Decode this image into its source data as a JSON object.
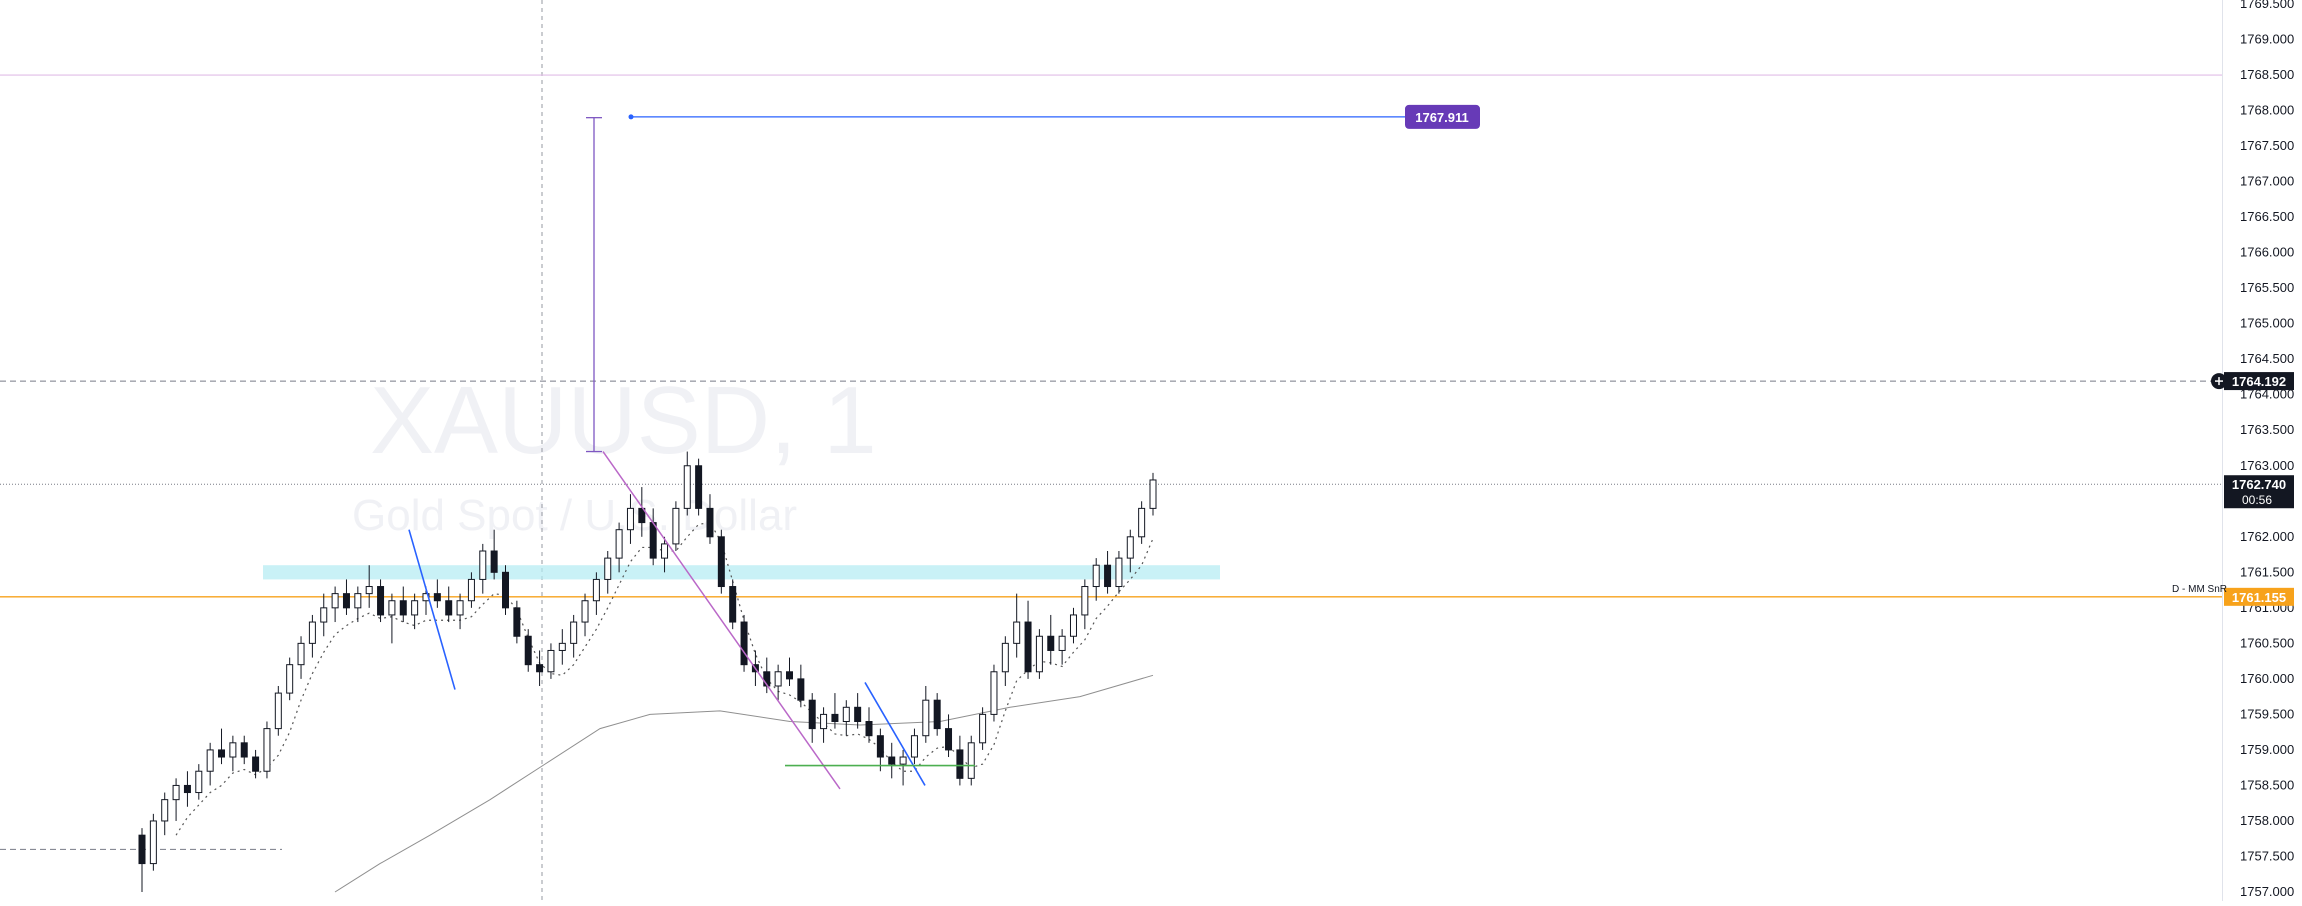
{
  "watermark": {
    "symbol": "XAUUSD, 1",
    "description": "Gold Spot / U.S. Dollar"
  },
  "chart_data": {
    "type": "candlestick",
    "symbol": "XAUUSD",
    "timeframe": "1",
    "ylim": [
      1757.0,
      1769.5
    ],
    "y_ticks": [
      "1769.500",
      "1769.000",
      "1768.500",
      "1768.000",
      "1767.500",
      "1767.000",
      "1766.500",
      "1766.000",
      "1765.500",
      "1765.000",
      "1764.500",
      "1764.000",
      "1763.500",
      "1763.000",
      "1762.500",
      "1762.000",
      "1761.500",
      "1761.000",
      "1760.500",
      "1760.000",
      "1759.500",
      "1759.000",
      "1758.500",
      "1758.000",
      "1757.500",
      "1757.000"
    ],
    "price_labels": {
      "target": {
        "text": "1767.911",
        "value": 1767.911,
        "color": "#673ab7"
      },
      "alert": {
        "text": "1764.192",
        "value": 1764.192,
        "color": "#131722"
      },
      "last": {
        "text": "1762.740",
        "value": 1762.74,
        "countdown": "00:56",
        "color": "#131722"
      },
      "snr": {
        "text": "1761.155",
        "value": 1761.155,
        "color": "#f7a21b",
        "name": "D - MM SnR"
      }
    },
    "lines": {
      "pink_level": 1768.5,
      "snr_level": 1761.155,
      "alert_level": 1764.192,
      "last_level": 1762.74
    },
    "zone": {
      "low": 1761.4,
      "high": 1761.6,
      "color": "#b2ebf2"
    },
    "candles": [
      [
        1757.8,
        1757.9,
        1757.0,
        1757.4
      ],
      [
        1757.4,
        1758.1,
        1757.3,
        1758.0
      ],
      [
        1758.0,
        1758.4,
        1757.8,
        1758.3
      ],
      [
        1758.3,
        1758.6,
        1758.0,
        1758.5
      ],
      [
        1758.5,
        1758.7,
        1758.2,
        1758.4
      ],
      [
        1758.4,
        1758.8,
        1758.3,
        1758.7
      ],
      [
        1758.7,
        1759.1,
        1758.5,
        1759.0
      ],
      [
        1759.0,
        1759.3,
        1758.8,
        1758.9
      ],
      [
        1758.9,
        1759.2,
        1758.7,
        1759.1
      ],
      [
        1759.1,
        1759.2,
        1758.8,
        1758.9
      ],
      [
        1758.9,
        1759.0,
        1758.6,
        1758.7
      ],
      [
        1758.7,
        1759.4,
        1758.6,
        1759.3
      ],
      [
        1759.3,
        1759.9,
        1759.2,
        1759.8
      ],
      [
        1759.8,
        1760.3,
        1759.7,
        1760.2
      ],
      [
        1760.2,
        1760.6,
        1760.0,
        1760.5
      ],
      [
        1760.5,
        1760.9,
        1760.3,
        1760.8
      ],
      [
        1760.8,
        1761.2,
        1760.6,
        1761.0
      ],
      [
        1761.0,
        1761.3,
        1760.8,
        1761.2
      ],
      [
        1761.2,
        1761.4,
        1760.9,
        1761.0
      ],
      [
        1761.0,
        1761.3,
        1760.8,
        1761.2
      ],
      [
        1761.2,
        1761.6,
        1761.0,
        1761.3
      ],
      [
        1761.3,
        1761.4,
        1760.8,
        1760.9
      ],
      [
        1760.9,
        1761.2,
        1760.5,
        1761.1
      ],
      [
        1761.1,
        1761.3,
        1760.8,
        1760.9
      ],
      [
        1760.9,
        1761.2,
        1760.7,
        1761.1
      ],
      [
        1761.1,
        1761.3,
        1760.9,
        1761.2
      ],
      [
        1761.2,
        1761.4,
        1761.0,
        1761.1
      ],
      [
        1761.1,
        1761.3,
        1760.8,
        1760.9
      ],
      [
        1760.9,
        1761.2,
        1760.7,
        1761.1
      ],
      [
        1761.1,
        1761.5,
        1761.0,
        1761.4
      ],
      [
        1761.4,
        1761.9,
        1761.2,
        1761.8
      ],
      [
        1761.8,
        1762.1,
        1761.4,
        1761.5
      ],
      [
        1761.5,
        1761.6,
        1760.9,
        1761.0
      ],
      [
        1761.0,
        1761.1,
        1760.5,
        1760.6
      ],
      [
        1760.6,
        1760.7,
        1760.1,
        1760.2
      ],
      [
        1760.2,
        1760.4,
        1759.9,
        1760.1
      ],
      [
        1760.1,
        1760.5,
        1760.0,
        1760.4
      ],
      [
        1760.4,
        1760.7,
        1760.2,
        1760.5
      ],
      [
        1760.5,
        1760.9,
        1760.3,
        1760.8
      ],
      [
        1760.8,
        1761.2,
        1760.6,
        1761.1
      ],
      [
        1761.1,
        1761.5,
        1760.9,
        1761.4
      ],
      [
        1761.4,
        1761.8,
        1761.2,
        1761.7
      ],
      [
        1761.7,
        1762.2,
        1761.5,
        1762.1
      ],
      [
        1762.1,
        1762.6,
        1761.9,
        1762.4
      ],
      [
        1762.4,
        1762.7,
        1762.0,
        1762.2
      ],
      [
        1762.2,
        1762.4,
        1761.6,
        1761.7
      ],
      [
        1761.7,
        1762.0,
        1761.5,
        1761.9
      ],
      [
        1761.9,
        1762.5,
        1761.8,
        1762.4
      ],
      [
        1762.4,
        1763.2,
        1762.3,
        1763.0
      ],
      [
        1763.0,
        1763.1,
        1762.3,
        1762.4
      ],
      [
        1762.4,
        1762.6,
        1761.9,
        1762.0
      ],
      [
        1762.0,
        1762.1,
        1761.2,
        1761.3
      ],
      [
        1761.3,
        1761.4,
        1760.7,
        1760.8
      ],
      [
        1760.8,
        1760.9,
        1760.1,
        1760.2
      ],
      [
        1760.2,
        1760.4,
        1759.9,
        1760.1
      ],
      [
        1760.1,
        1760.3,
        1759.8,
        1759.9
      ],
      [
        1759.9,
        1760.2,
        1759.7,
        1760.1
      ],
      [
        1760.1,
        1760.3,
        1759.9,
        1760.0
      ],
      [
        1760.0,
        1760.2,
        1759.6,
        1759.7
      ],
      [
        1759.7,
        1759.8,
        1759.1,
        1759.3
      ],
      [
        1759.3,
        1759.6,
        1759.1,
        1759.5
      ],
      [
        1759.5,
        1759.8,
        1759.3,
        1759.4
      ],
      [
        1759.4,
        1759.7,
        1759.2,
        1759.6
      ],
      [
        1759.6,
        1759.8,
        1759.3,
        1759.4
      ],
      [
        1759.4,
        1759.6,
        1759.1,
        1759.2
      ],
      [
        1759.2,
        1759.3,
        1758.7,
        1758.9
      ],
      [
        1758.9,
        1759.1,
        1758.6,
        1758.8
      ],
      [
        1758.8,
        1759.0,
        1758.5,
        1758.9
      ],
      [
        1758.9,
        1759.3,
        1758.8,
        1759.2
      ],
      [
        1759.2,
        1759.9,
        1759.1,
        1759.7
      ],
      [
        1759.7,
        1759.8,
        1759.2,
        1759.3
      ],
      [
        1759.3,
        1759.5,
        1758.9,
        1759.0
      ],
      [
        1759.0,
        1759.2,
        1758.5,
        1758.6
      ],
      [
        1758.6,
        1759.2,
        1758.5,
        1759.1
      ],
      [
        1759.1,
        1759.6,
        1759.0,
        1759.5
      ],
      [
        1759.5,
        1760.2,
        1759.4,
        1760.1
      ],
      [
        1760.1,
        1760.6,
        1759.9,
        1760.5
      ],
      [
        1760.5,
        1761.2,
        1760.3,
        1760.8
      ],
      [
        1760.8,
        1761.1,
        1760.0,
        1760.1
      ],
      [
        1760.1,
        1760.7,
        1760.0,
        1760.6
      ],
      [
        1760.6,
        1760.9,
        1760.2,
        1760.4
      ],
      [
        1760.4,
        1760.7,
        1760.2,
        1760.6
      ],
      [
        1760.6,
        1761.0,
        1760.5,
        1760.9
      ],
      [
        1760.9,
        1761.4,
        1760.7,
        1761.3
      ],
      [
        1761.3,
        1761.7,
        1761.1,
        1761.6
      ],
      [
        1761.6,
        1761.8,
        1761.2,
        1761.3
      ],
      [
        1761.3,
        1761.8,
        1761.2,
        1761.7
      ],
      [
        1761.7,
        1762.1,
        1761.5,
        1762.0
      ],
      [
        1762.0,
        1762.5,
        1761.9,
        1762.4
      ],
      [
        1762.4,
        1762.9,
        1762.3,
        1762.8
      ]
    ]
  }
}
